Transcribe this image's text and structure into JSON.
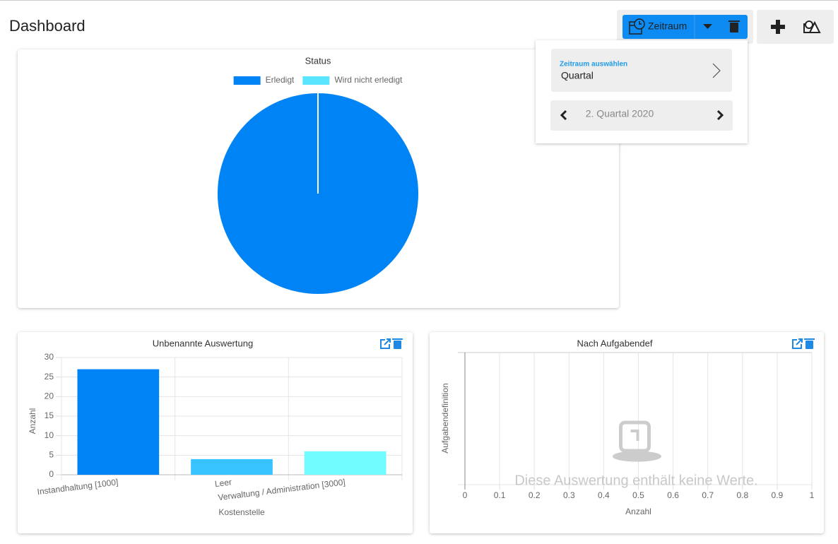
{
  "header": {
    "title": "Dashboard",
    "period_button": "Zeitraum"
  },
  "period_menu": {
    "label": "Zeitraum auswählen",
    "value": "Quartal",
    "current": "2. Quartal 2020"
  },
  "chart_data": [
    {
      "type": "pie",
      "title": "Status",
      "categories": [
        "Erledigt",
        "Wird nicht erledigt"
      ],
      "values": [
        100,
        0
      ],
      "colors": [
        "#0084f5",
        "#57e5ff"
      ],
      "legend": "top"
    },
    {
      "type": "bar",
      "title": "Unbenannte Auswertung",
      "categories": [
        "Instandhaltung [1000]",
        "Leer",
        "Verwaltung / Administration [3000]"
      ],
      "values": [
        27,
        4,
        6
      ],
      "colors": [
        "#0084f5",
        "#36c3ff",
        "#6ffbff"
      ],
      "ylim": [
        0,
        30
      ],
      "yticks": [
        0,
        5,
        10,
        15,
        20,
        25,
        30
      ],
      "grid": true,
      "x_label": "Kostenstelle",
      "y_label": "Anzahl"
    },
    {
      "type": "bar",
      "orientation": "horizontal",
      "title": "Nach Aufgabendef",
      "xlim": [
        0,
        1
      ],
      "xticks": [
        0,
        0.1,
        0.2,
        0.3,
        0.4,
        0.5,
        0.6,
        0.7,
        0.8,
        0.9,
        1
      ],
      "grid": true,
      "x_label": "Anzahl",
      "y_label": "Aufgabendefinition",
      "empty_message": "Diese Auswertung enthält keine Werte."
    }
  ]
}
